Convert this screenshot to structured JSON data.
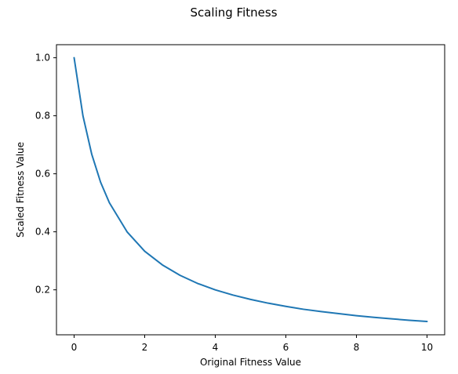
{
  "chart_data": {
    "type": "line",
    "title": "Scaling Fitness",
    "xlabel": "Original Fitness Value",
    "ylabel": "Scaled Fitness Value",
    "xlim": [
      -0.5,
      10.5
    ],
    "ylim": [
      0.045,
      1.045
    ],
    "xticks": [
      0,
      2,
      4,
      6,
      8,
      10
    ],
    "yticks": [
      0.2,
      0.4,
      0.6,
      0.8,
      1.0
    ],
    "xtick_labels": [
      "0",
      "2",
      "4",
      "6",
      "8",
      "10"
    ],
    "ytick_labels": [
      "0.2",
      "0.4",
      "0.6",
      "0.8",
      "1.0"
    ],
    "grid": false,
    "legend": "none",
    "line_color": "#1f77b4",
    "series": [
      {
        "x": [
          0,
          0.25,
          0.5,
          0.75,
          1,
          1.5,
          2,
          2.5,
          3,
          3.5,
          4,
          4.5,
          5,
          5.5,
          6,
          6.5,
          7,
          7.5,
          8,
          8.5,
          9,
          9.5,
          10
        ],
        "values": [
          1.0,
          0.8,
          0.667,
          0.571,
          0.5,
          0.4,
          0.333,
          0.286,
          0.25,
          0.222,
          0.2,
          0.182,
          0.167,
          0.154,
          0.143,
          0.133,
          0.125,
          0.118,
          0.111,
          0.105,
          0.1,
          0.095,
          0.091
        ]
      }
    ]
  }
}
